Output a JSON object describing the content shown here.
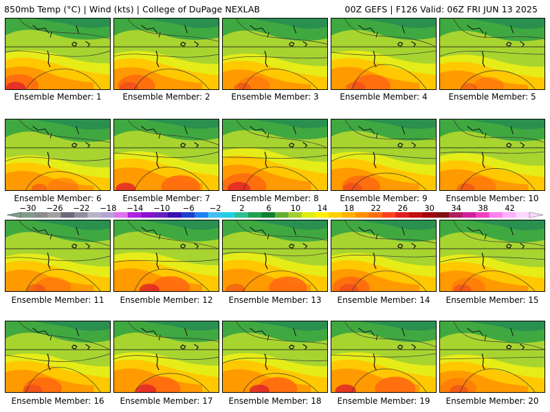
{
  "header": {
    "left": "850mb Temp (°C) | Wind (kts) | College of DuPage NEXLAB",
    "right": "00Z GEFS | F126 Valid: 06Z FRI JUN 13 2025"
  },
  "colorbar": {
    "labels": [
      "−30",
      "−26",
      "−22",
      "−18",
      "−14",
      "−10",
      "−6",
      "−2",
      "2",
      "6",
      "10",
      "14",
      "18",
      "22",
      "26",
      "30",
      "34",
      "38",
      "42"
    ],
    "colors": [
      "#7f9c8c",
      "#8a8a8a",
      "#a0a0a0",
      "#6a6a7a",
      "#8f8f9f",
      "#b6b6c6",
      "#b4a4d4",
      "#e070f0",
      "#b020e0",
      "#8a10d0",
      "#6a20c0",
      "#3a10b0",
      "#2040d0",
      "#2080f0",
      "#40c0f0",
      "#20d0e0",
      "#30c090",
      "#20a050",
      "#108030",
      "#60b030",
      "#a0d030",
      "#e0ec10",
      "#fff000",
      "#ffd000",
      "#ffb000",
      "#ff9000",
      "#ff7010",
      "#ff4020",
      "#e02020",
      "#c01010",
      "#a00010",
      "#801010",
      "#b02060",
      "#d020a0",
      "#f040c0",
      "#ff80f0",
      "#ffb0ff",
      "#ffd8ff"
    ]
  },
  "members": [
    {
      "label": "Ensemble Member: 1",
      "warmth": 0.62
    },
    {
      "label": "Ensemble Member: 2",
      "warmth": 0.58
    },
    {
      "label": "Ensemble Member: 3",
      "warmth": 0.45
    },
    {
      "label": "Ensemble Member: 4",
      "warmth": 0.6
    },
    {
      "label": "Ensemble Member: 5",
      "warmth": 0.4
    },
    {
      "label": "Ensemble Member: 6",
      "warmth": 0.42
    },
    {
      "label": "Ensemble Member: 7",
      "warmth": 0.62
    },
    {
      "label": "Ensemble Member: 8",
      "warmth": 0.78
    },
    {
      "label": "Ensemble Member: 9",
      "warmth": 0.6
    },
    {
      "label": "Ensemble Member: 10",
      "warmth": 0.52
    },
    {
      "label": "Ensemble Member: 11",
      "warmth": 0.55
    },
    {
      "label": "Ensemble Member: 12",
      "warmth": 0.62
    },
    {
      "label": "Ensemble Member: 13",
      "warmth": 0.6
    },
    {
      "label": "Ensemble Member: 14",
      "warmth": 0.58
    },
    {
      "label": "Ensemble Member: 15",
      "warmth": 0.5
    },
    {
      "label": "Ensemble Member: 16",
      "warmth": 0.6
    },
    {
      "label": "Ensemble Member: 17",
      "warmth": 0.66
    },
    {
      "label": "Ensemble Member: 18",
      "warmth": 0.62
    },
    {
      "label": "Ensemble Member: 19",
      "warmth": 0.66
    },
    {
      "label": "Ensemble Member: 20",
      "warmth": 0.55
    }
  ]
}
